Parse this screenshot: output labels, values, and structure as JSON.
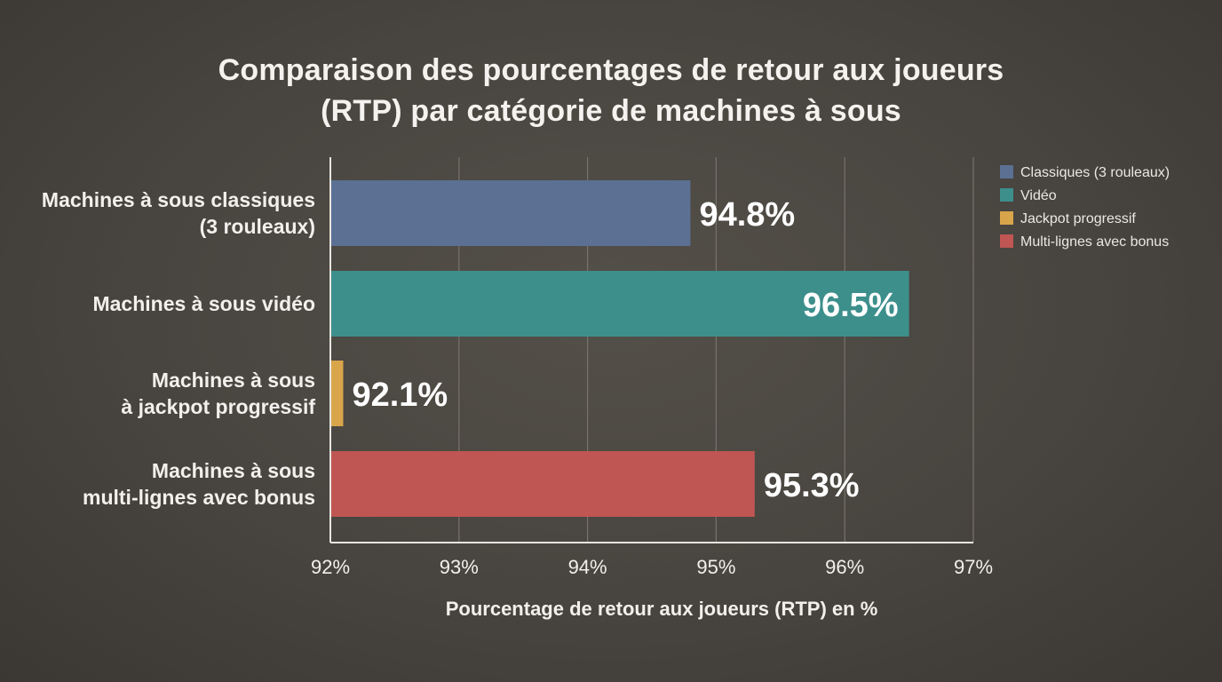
{
  "chart_data": {
    "type": "bar",
    "orientation": "horizontal",
    "title_lines": [
      "Comparaison des pourcentages de retour aux joueurs",
      "(RTP) par catégorie de machines à sous"
    ],
    "categories": [
      [
        "Machines à sous classiques",
        "(3 rouleaux)"
      ],
      [
        "Machines à sous vidéo"
      ],
      [
        "Machines à sous",
        "à jackpot progressif"
      ],
      [
        "Machines à sous",
        "multi-lignes avec bonus"
      ]
    ],
    "values": [
      94.8,
      96.5,
      92.1,
      95.3
    ],
    "value_labels": [
      "94.8%",
      "96.5%",
      "92.1%",
      "95.3%"
    ],
    "colors": [
      "#5b7093",
      "#3d8f8c",
      "#d9a54b",
      "#bf5653"
    ],
    "xlabel": "Pourcentage de retour aux joueurs (RTP) en %",
    "xlim": [
      92,
      97
    ],
    "ticks": [
      92,
      93,
      94,
      95,
      96,
      97
    ],
    "tick_labels": [
      "92%",
      "93%",
      "94%",
      "95%",
      "96%",
      "97%"
    ],
    "grid": true,
    "legend": {
      "placement": "top-right",
      "entries": [
        {
          "label": "Classiques (3 rouleaux)",
          "color": "#5b7093"
        },
        {
          "label": "Vidéo",
          "color": "#3d8f8c"
        },
        {
          "label": "Jackpot progressif",
          "color": "#d9a54b"
        },
        {
          "label": "Multi-lignes avec bonus",
          "color": "#bf5653"
        }
      ]
    }
  }
}
